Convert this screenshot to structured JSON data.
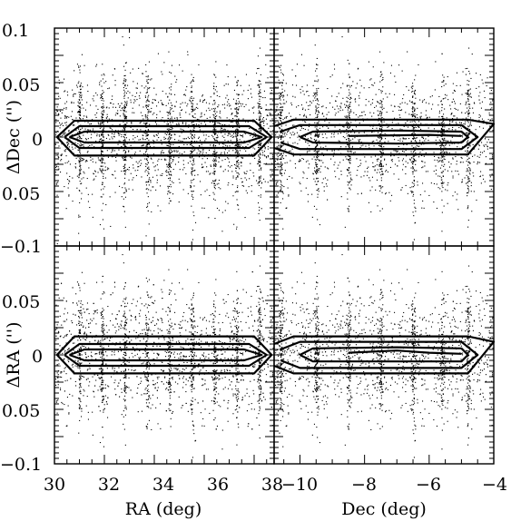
{
  "chart_data": [
    {
      "type": "scatter",
      "panel": "top-left",
      "xlabel": "",
      "ylabel": "ΔDec ('')",
      "xlim": [
        30,
        38.8
      ],
      "ylim": [
        -0.1,
        0.1
      ],
      "point_color": "#000000",
      "contours": [
        {
          "x": [
            30.6,
            31.2,
            37.6,
            38.3,
            37.6,
            31.2,
            30.6
          ],
          "y": [
            0,
            0.005,
            0.005,
            0,
            -0.005,
            -0.005,
            0
          ]
        },
        {
          "x": [
            30.4,
            31.0,
            37.8,
            38.5,
            37.8,
            31.0,
            30.4
          ],
          "y": [
            0,
            0.01,
            0.01,
            0,
            -0.01,
            -0.01,
            0
          ]
        },
        {
          "x": [
            30.1,
            30.8,
            38.0,
            38.7,
            38.0,
            30.8,
            30.1
          ],
          "y": [
            0,
            0.015,
            0.015,
            0,
            -0.017,
            -0.017,
            0
          ]
        }
      ],
      "stripe_x": [
        31.0,
        31.9,
        32.8,
        33.7,
        34.6,
        35.5,
        36.4,
        37.3,
        38.2
      ],
      "n_points": 2600
    },
    {
      "type": "scatter",
      "panel": "top-right",
      "xlabel": "",
      "ylabel": "",
      "xlim": [
        -10.8,
        -4
      ],
      "ylim": [
        -0.1,
        0.1
      ],
      "point_color": "#000000",
      "contours": [
        {
          "x": [
            -8.5,
            -6.0,
            -5.0
          ],
          "y": [
            0.001,
            0.002,
            0.001
          ]
        },
        {
          "x": [
            -10.0,
            -9.6,
            -7.0,
            -5.0,
            -4.8,
            -5.0,
            -7.0,
            -9.6,
            -10.0
          ],
          "y": [
            0,
            0.005,
            0.006,
            0.005,
            0,
            -0.005,
            -0.006,
            -0.005,
            0
          ]
        },
        {
          "x": [
            -10.6,
            -10.0,
            -5.0,
            -4.5,
            -5.0,
            -10.0,
            -10.6
          ],
          "y": [
            0.005,
            0.011,
            0.011,
            0,
            -0.011,
            -0.011,
            -0.005
          ]
        },
        {
          "x": [
            -10.8,
            -10.2,
            -4.8,
            -4.0,
            -4.8,
            -10.2,
            -10.8
          ],
          "y": [
            0.01,
            0.016,
            0.016,
            0.012,
            -0.016,
            -0.016,
            -0.01
          ]
        }
      ],
      "stripe_x": [
        -10.6,
        -9.5,
        -8.5,
        -7.5,
        -6.5,
        -5.6,
        -4.8
      ],
      "n_points": 2200
    },
    {
      "type": "scatter",
      "panel": "bottom-left",
      "xlabel": "RA (deg)",
      "ylabel": "ΔRA ('')",
      "xlim": [
        30,
        38.8
      ],
      "ylim": [
        -0.1,
        0.1
      ],
      "point_color": "#000000",
      "contours": [
        {
          "x": [
            30.6,
            31.2,
            37.6,
            38.3,
            37.6,
            31.2,
            30.6
          ],
          "y": [
            0,
            0.005,
            0.005,
            0,
            -0.005,
            -0.005,
            0
          ]
        },
        {
          "x": [
            30.4,
            31.0,
            37.8,
            38.5,
            37.8,
            31.0,
            30.4
          ],
          "y": [
            0,
            0.01,
            0.01,
            0,
            -0.01,
            -0.01,
            0
          ]
        },
        {
          "x": [
            30.1,
            30.8,
            38.0,
            38.7,
            38.0,
            30.8,
            30.1
          ],
          "y": [
            0,
            0.017,
            0.017,
            0,
            -0.017,
            -0.017,
            0
          ]
        }
      ],
      "stripe_x": [
        31.0,
        31.9,
        32.8,
        33.7,
        34.6,
        35.5,
        36.4,
        37.3,
        38.2
      ],
      "n_points": 2600
    },
    {
      "type": "scatter",
      "panel": "bottom-right",
      "xlabel": "Dec (deg)",
      "ylabel": "",
      "xlim": [
        -10.8,
        -4
      ],
      "ylim": [
        -0.1,
        0.1
      ],
      "point_color": "#000000",
      "contours": [
        {
          "x": [
            -8.5,
            -7.0,
            -6.0,
            -5.0
          ],
          "y": [
            0.002,
            0.004,
            0.002,
            0.001
          ]
        },
        {
          "x": [
            -10.0,
            -9.6,
            -7.0,
            -5.0,
            -4.8,
            -5.0,
            -7.0,
            -9.6,
            -10.0
          ],
          "y": [
            0,
            0.006,
            0.007,
            0.006,
            0,
            -0.006,
            -0.006,
            -0.006,
            0
          ]
        },
        {
          "x": [
            -10.6,
            -10.0,
            -5.0,
            -4.5,
            -5.0,
            -10.0,
            -10.6
          ],
          "y": [
            0.005,
            0.012,
            0.012,
            0,
            -0.012,
            -0.012,
            -0.005
          ]
        },
        {
          "x": [
            -10.8,
            -10.2,
            -4.8,
            -4.0,
            -4.8,
            -10.2,
            -10.8
          ],
          "y": [
            0.01,
            0.017,
            0.017,
            0.012,
            -0.017,
            -0.017,
            -0.01
          ]
        }
      ],
      "stripe_x": [
        -10.6,
        -9.5,
        -8.5,
        -7.5,
        -6.5,
        -5.6,
        -4.8
      ],
      "n_points": 2200
    }
  ],
  "axes": {
    "y_ticks_top": [
      "0.1",
      "0.05",
      "0",
      "0.05",
      "−0.1"
    ],
    "y_ticks_bottom": [
      "−0.1",
      "0.05",
      "0",
      "0.05",
      "−0.1"
    ],
    "x_ticks_left": [
      "30",
      "32",
      "34",
      "36",
      "38"
    ],
    "x_ticks_right": [
      "−10",
      "−8",
      "−6",
      "−4"
    ]
  }
}
